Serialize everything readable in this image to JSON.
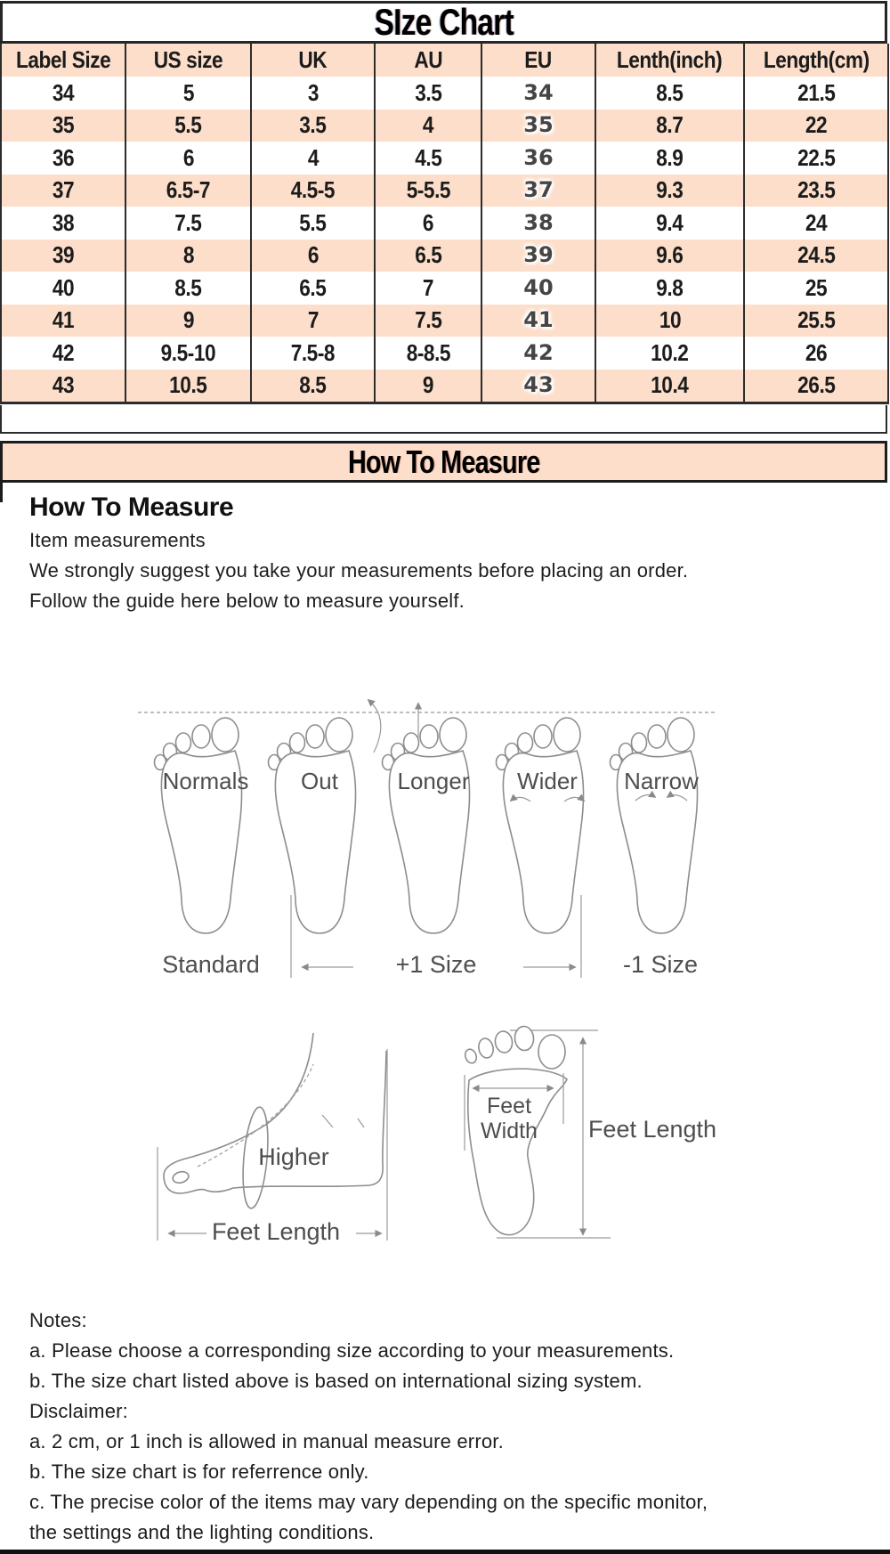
{
  "title": "SIze Chart",
  "size_table": {
    "headers": [
      "Label Size",
      "US size",
      "UK",
      "AU",
      "EU",
      "Lenth(inch)",
      "Length(cm)"
    ],
    "rows": [
      [
        "34",
        "5",
        "3",
        "3.5",
        "34",
        "8.5",
        "21.5"
      ],
      [
        "35",
        "5.5",
        "3.5",
        "4",
        "35",
        "8.7",
        "22"
      ],
      [
        "36",
        "6",
        "4",
        "4.5",
        "36",
        "8.9",
        "22.5"
      ],
      [
        "37",
        "6.5-7",
        "4.5-5",
        "5-5.5",
        "37",
        "9.3",
        "23.5"
      ],
      [
        "38",
        "7.5",
        "5.5",
        "6",
        "38",
        "9.4",
        "24"
      ],
      [
        "39",
        "8",
        "6",
        "6.5",
        "39",
        "9.6",
        "24.5"
      ],
      [
        "40",
        "8.5",
        "6.5",
        "7",
        "40",
        "9.8",
        "25"
      ],
      [
        "41",
        "9",
        "7",
        "7.5",
        "41",
        "10",
        "25.5"
      ],
      [
        "42",
        "9.5-10",
        "7.5-8",
        "8-8.5",
        "42",
        "10.2",
        "26"
      ],
      [
        "43",
        "10.5",
        "8.5",
        "9",
        "43",
        "10.4",
        "26.5"
      ]
    ]
  },
  "banner": "How To Measure",
  "measure_section": {
    "heading": "How To Measure",
    "subheading": "Item measurements",
    "line1": "We strongly suggest you take your measurements before placing an order.",
    "line2": "Follow the guide here below to measure yourself."
  },
  "feet_figure": {
    "foot_labels": [
      "Normals",
      "Out",
      "Longer",
      "Wider",
      "Narrow"
    ],
    "bottom_labels": [
      "Standard",
      "+1 Size",
      "-1 Size"
    ]
  },
  "measure_figure": {
    "higher": "Higher",
    "feet_length_side": "Feet Length",
    "feet_width_line1": "Feet",
    "feet_width_line2": "Width",
    "feet_length_print": "Feet Length"
  },
  "notes": {
    "heading": "Notes:",
    "a": "a. Please choose a corresponding size according to your measurements.",
    "b": "b. The size chart listed above is based on international sizing system.",
    "disclaimer": "Disclaimer:",
    "da": "a. 2 cm, or 1 inch is allowed in manual measure error.",
    "db": "b. The size chart is for referrence only.",
    "dc1": "c. The precise color of the items may vary depending on the specific monitor,",
    "dc2": "the settings and the lighting conditions."
  },
  "colors": {
    "peach": "#fcdeca",
    "border": "#2c2c2c",
    "diagram_gray": "#8d8d8d",
    "label_gray": "#4e4e4e"
  }
}
